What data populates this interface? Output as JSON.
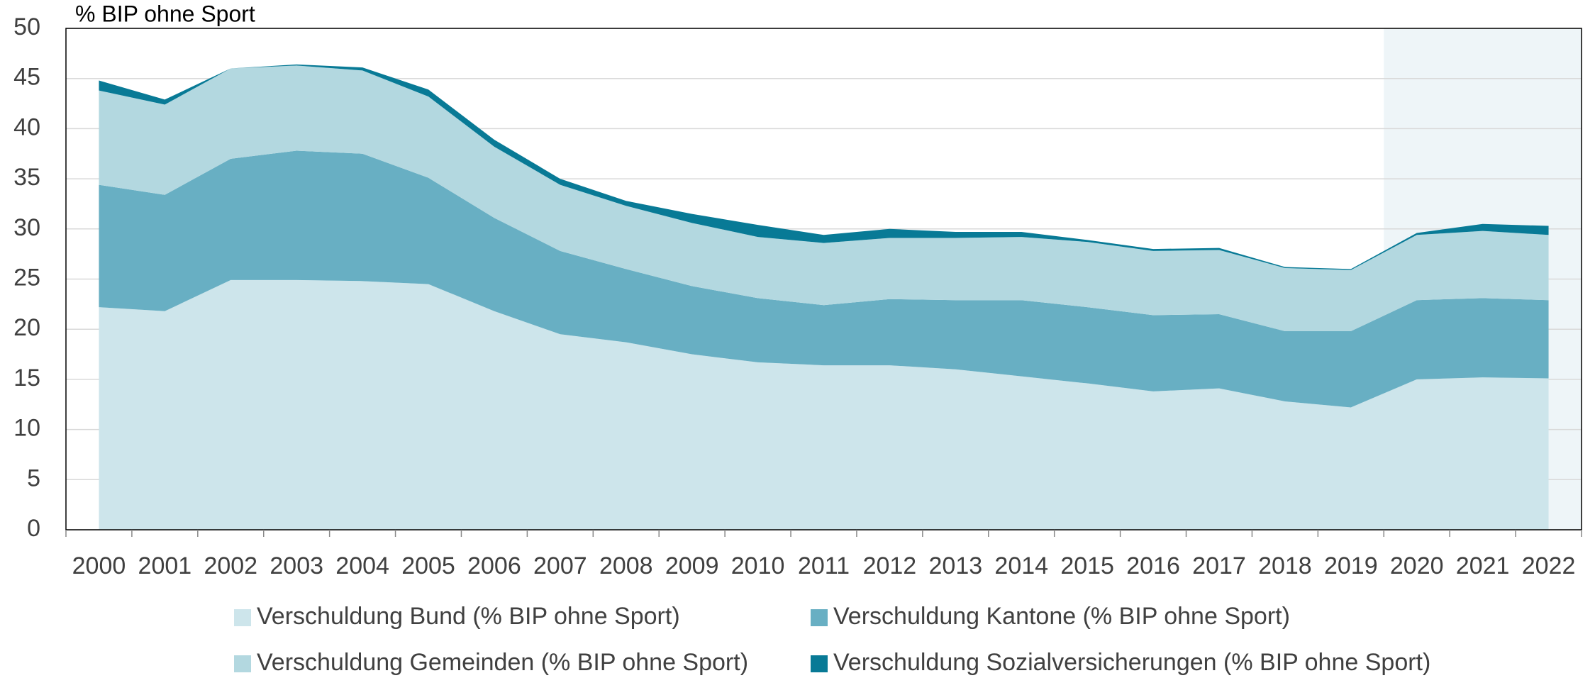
{
  "chart_data": {
    "type": "stacked_area",
    "y_axis_label": "% BIP ohne Sport",
    "categories": [
      "2000",
      "2001",
      "2002",
      "2003",
      "2004",
      "2005",
      "2006",
      "2007",
      "2008",
      "2009",
      "2010",
      "2011",
      "2012",
      "2013",
      "2014",
      "2015",
      "2016",
      "2017",
      "2018",
      "2019",
      "2020",
      "2021",
      "2022"
    ],
    "series": [
      {
        "name": "Verschuldung Bund (% BIP ohne Sport)",
        "color": "#cde5eb",
        "values": [
          22.2,
          21.8,
          24.9,
          24.9,
          24.8,
          24.5,
          21.8,
          19.5,
          18.7,
          17.5,
          16.7,
          16.4,
          16.4,
          16.0,
          15.3,
          14.6,
          13.8,
          14.1,
          12.8,
          12.2,
          15.0,
          15.2,
          15.1
        ]
      },
      {
        "name": "Verschuldung Kantone (% BIP ohne Sport)",
        "color": "#68afc3",
        "values": [
          12.2,
          11.6,
          12.1,
          12.9,
          12.7,
          10.6,
          9.3,
          8.3,
          7.3,
          6.8,
          6.4,
          6.0,
          6.6,
          6.9,
          7.6,
          7.6,
          7.6,
          7.4,
          7.0,
          7.6,
          7.9,
          7.9,
          7.8
        ]
      },
      {
        "name": "Verschuldung Gemeinden (% BIP ohne Sport)",
        "color": "#b3d8e0",
        "values": [
          9.4,
          9.0,
          9.0,
          8.5,
          8.3,
          8.1,
          7.1,
          6.6,
          6.3,
          6.3,
          6.1,
          6.2,
          6.1,
          6.2,
          6.3,
          6.5,
          6.4,
          6.4,
          6.3,
          6.1,
          6.5,
          6.7,
          6.5
        ]
      },
      {
        "name": "Verschuldung Sozialversicherungen (% BIP ohne Sport)",
        "color": "#087a96",
        "values": [
          1.0,
          0.5,
          0.0,
          0.1,
          0.3,
          0.7,
          0.7,
          0.6,
          0.5,
          0.9,
          1.2,
          0.8,
          0.9,
          0.6,
          0.5,
          0.2,
          0.2,
          0.2,
          0.1,
          0.1,
          0.2,
          0.7,
          0.9
        ]
      }
    ],
    "ylim": [
      0,
      50
    ],
    "yticks": [
      0,
      5,
      10,
      15,
      20,
      25,
      30,
      35,
      40,
      45,
      50
    ],
    "grid": true,
    "shaded_start": "2020",
    "shade_color": "#eef5f8"
  }
}
